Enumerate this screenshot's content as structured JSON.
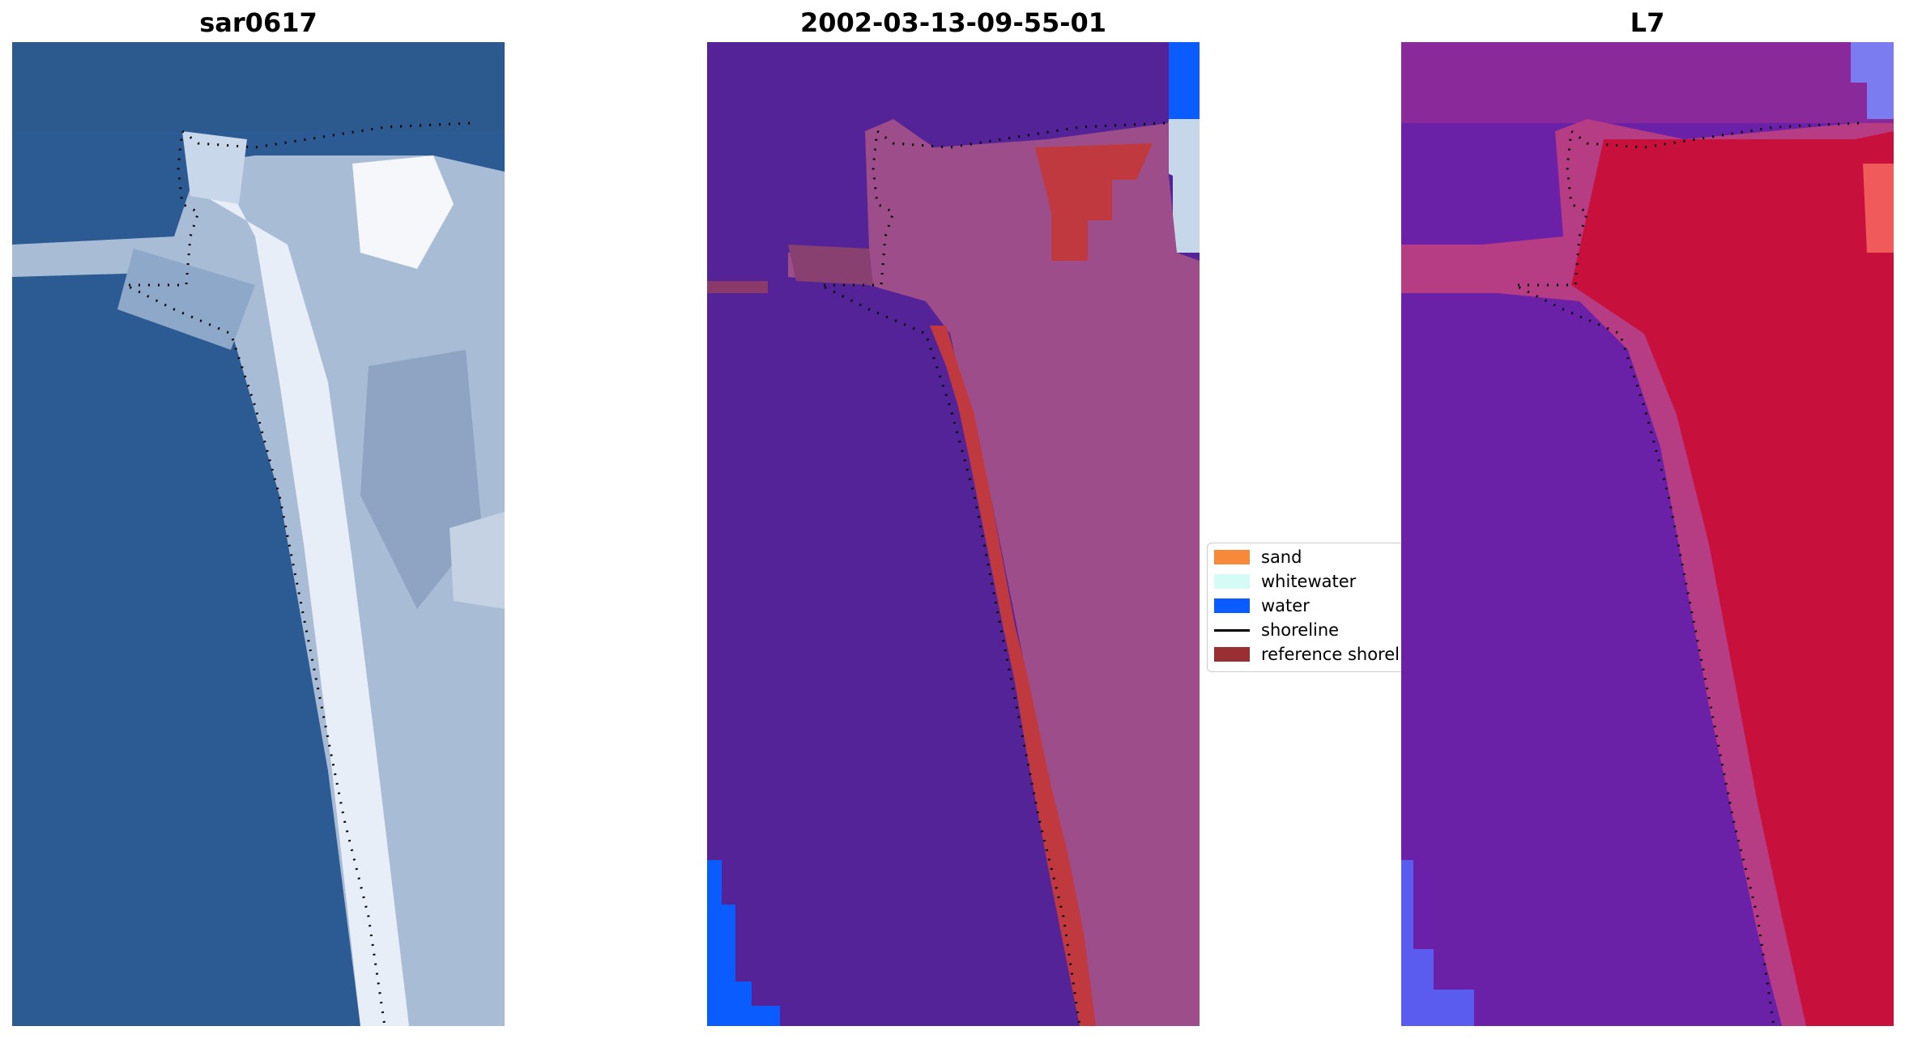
{
  "panels": [
    {
      "title": "sar0617",
      "content": "RGB satellite image of the beach and inlet"
    },
    {
      "title": "2002-03-13-09-55-01",
      "content": "classified image (sand / whitewater / water)"
    },
    {
      "title": "L7",
      "content": "MNDWI index image"
    }
  ],
  "legend": {
    "items": [
      {
        "label": "sand",
        "color": "#f68a3a",
        "kind": "patch"
      },
      {
        "label": "whitewater",
        "color": "#d4fbf6",
        "kind": "patch"
      },
      {
        "label": "water",
        "color": "#0b5cff",
        "kind": "patch"
      },
      {
        "label": "shoreline",
        "color": "#000000",
        "kind": "line"
      },
      {
        "label": "reference shoreline",
        "color": "#9a2f33",
        "kind": "patch"
      }
    ]
  },
  "colors": {
    "ocean_rgb": "#2c5a92",
    "beach_rgb": "#dfe8f4",
    "water_class": "#532397",
    "land_class": "#9c4d8a",
    "reference_shoreline": "#c0393f",
    "index_land": "#c8103c",
    "index_water": "#6b20a8"
  }
}
